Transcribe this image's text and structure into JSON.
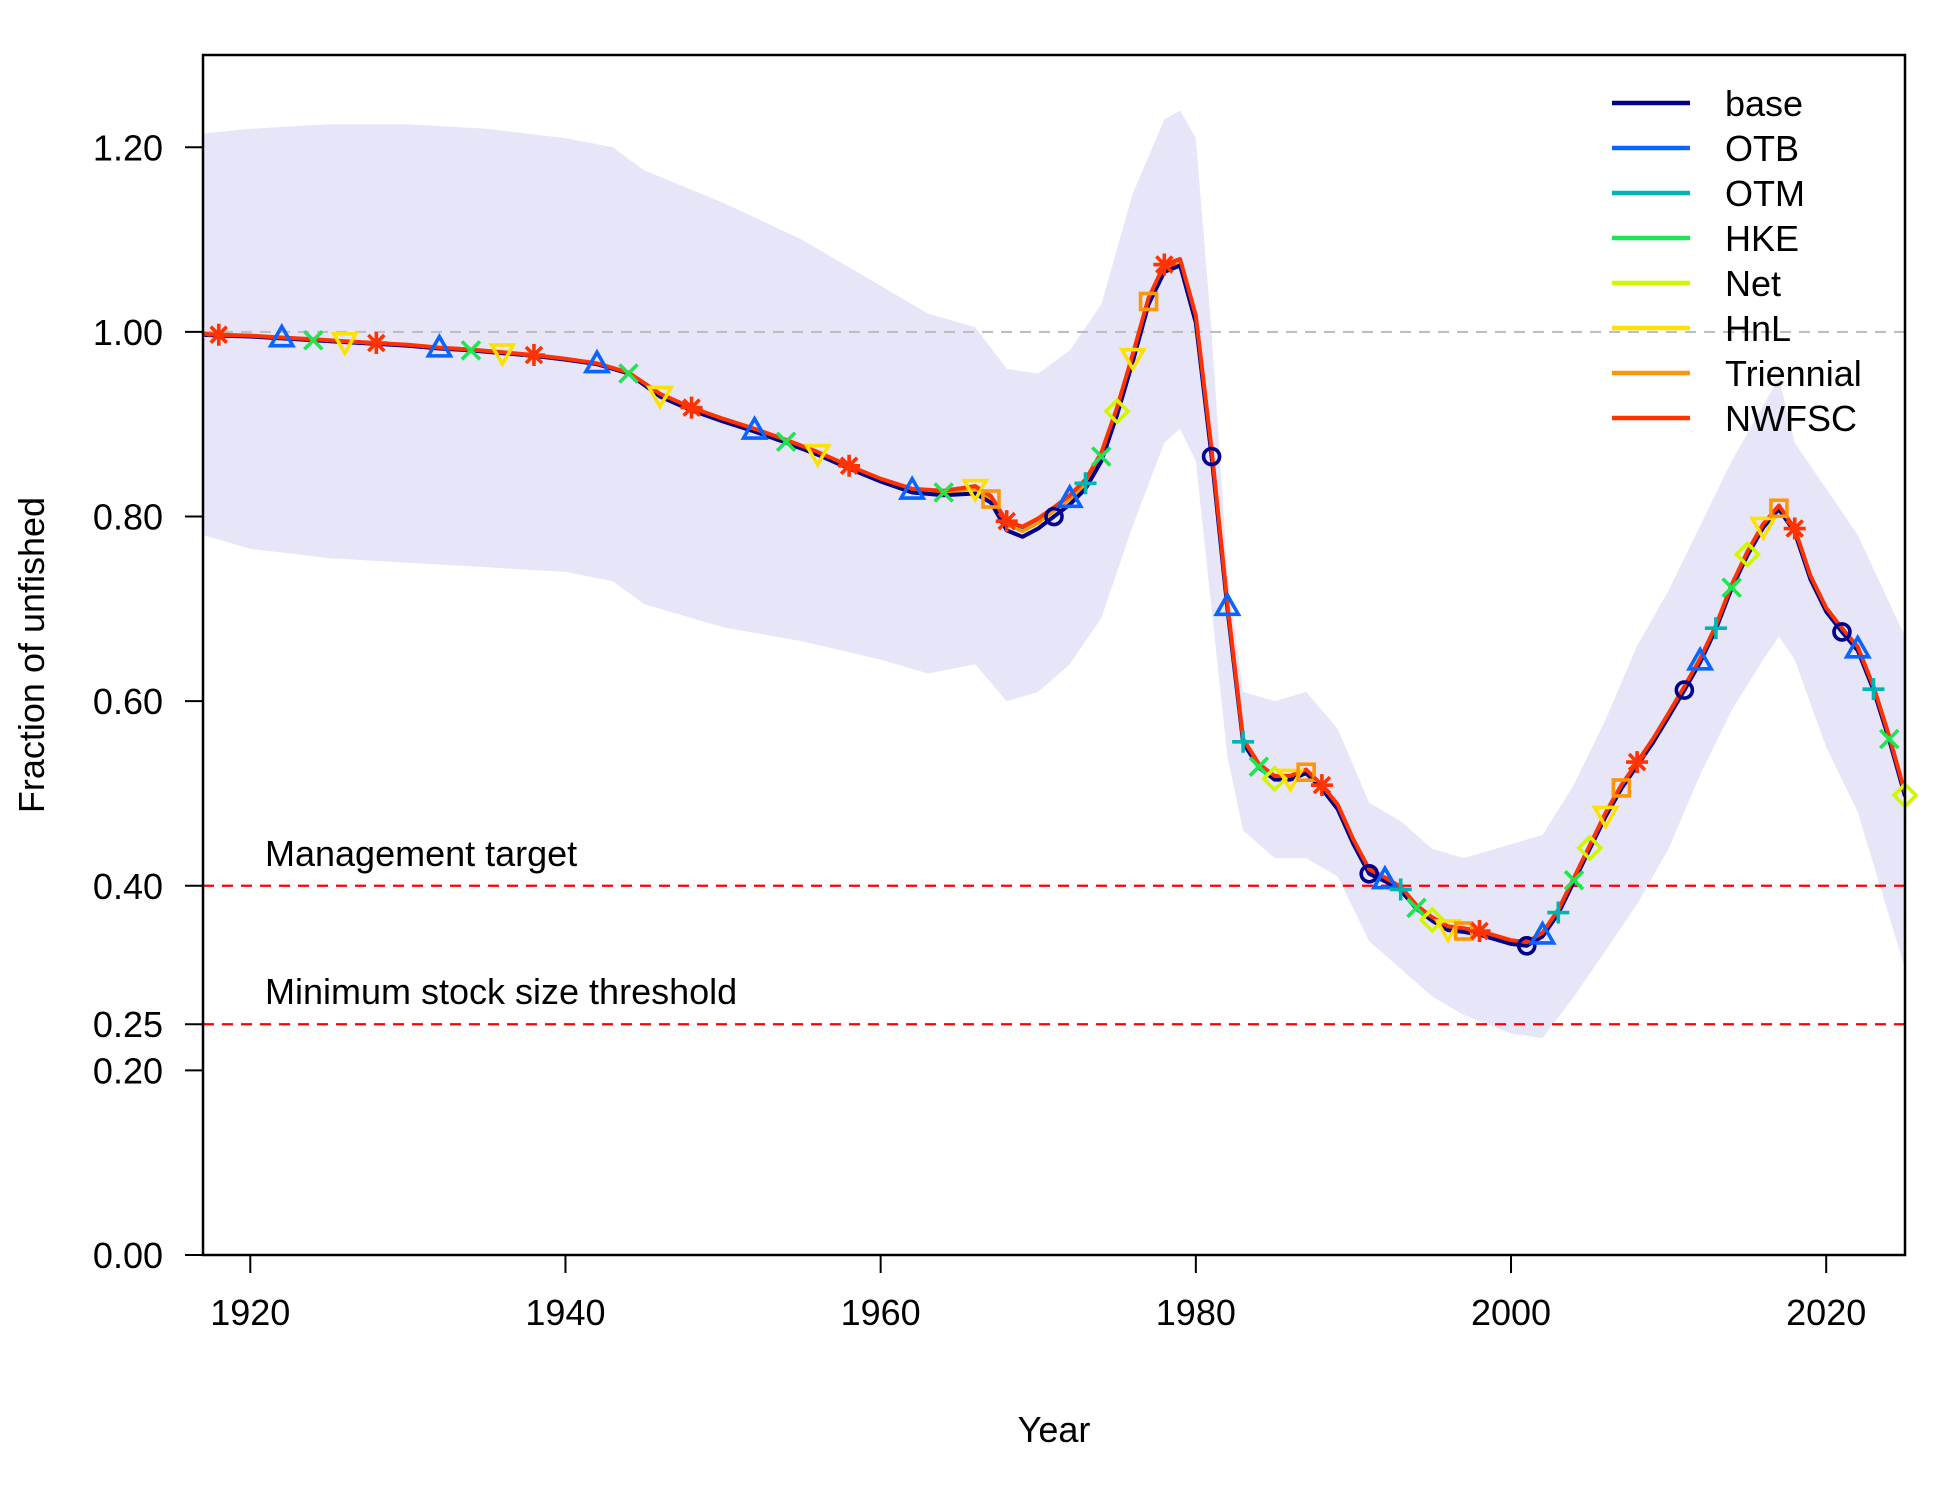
{
  "chart_data": {
    "type": "line",
    "xlabel": "Year",
    "ylabel": "Fraction of unfished",
    "xlim": [
      1917,
      2025
    ],
    "ylim": [
      0,
      1.3
    ],
    "x_ticks": [
      "1920",
      "1940",
      "1960",
      "1980",
      "2000",
      "2020"
    ],
    "y_ticks": [
      "0.00",
      "0.20",
      "0.25",
      "0.40",
      "0.60",
      "0.80",
      "1.00",
      "1.20"
    ],
    "reference_lines": [
      {
        "value": 1.0,
        "label": "",
        "color": "#BEBEBE",
        "style": "dashed"
      },
      {
        "value": 0.4,
        "label": "Management target",
        "color": "#FF0000",
        "style": "dashed"
      },
      {
        "value": 0.25,
        "label": "Minimum stock size threshold",
        "color": "#FF0000",
        "style": "dashed"
      }
    ],
    "interval_color": "#E6E6F8",
    "legend_position": "top-right",
    "interval": {
      "x": [
        1917,
        1920,
        1925,
        1930,
        1935,
        1940,
        1943,
        1945,
        1950,
        1955,
        1960,
        1963,
        1966,
        1968,
        1970,
        1972,
        1974,
        1976,
        1978,
        1979,
        1980,
        1981,
        1982,
        1983,
        1985,
        1987,
        1989,
        1991,
        1993,
        1995,
        1997,
        2000,
        2002,
        2004,
        2006,
        2008,
        2010,
        2012,
        2014,
        2016,
        2017,
        2018,
        2020,
        2022,
        2025
      ],
      "lower": [
        0.78,
        0.765,
        0.755,
        0.75,
        0.745,
        0.74,
        0.73,
        0.705,
        0.68,
        0.665,
        0.645,
        0.63,
        0.64,
        0.6,
        0.61,
        0.64,
        0.69,
        0.79,
        0.88,
        0.895,
        0.86,
        0.7,
        0.54,
        0.46,
        0.43,
        0.43,
        0.41,
        0.34,
        0.31,
        0.28,
        0.26,
        0.24,
        0.235,
        0.28,
        0.33,
        0.38,
        0.44,
        0.52,
        0.59,
        0.645,
        0.67,
        0.645,
        0.55,
        0.48,
        0.31
      ],
      "upper": [
        1.215,
        1.22,
        1.225,
        1.225,
        1.22,
        1.21,
        1.2,
        1.175,
        1.14,
        1.1,
        1.05,
        1.02,
        1.005,
        0.96,
        0.955,
        0.98,
        1.03,
        1.15,
        1.23,
        1.24,
        1.21,
        1.0,
        0.74,
        0.61,
        0.6,
        0.61,
        0.57,
        0.49,
        0.47,
        0.44,
        0.43,
        0.445,
        0.455,
        0.51,
        0.58,
        0.66,
        0.72,
        0.79,
        0.86,
        0.92,
        0.95,
        0.88,
        0.83,
        0.78,
        0.67
      ]
    },
    "x": [
      1917,
      1918,
      1920,
      1922,
      1924,
      1926,
      1928,
      1930,
      1932,
      1934,
      1936,
      1938,
      1940,
      1942,
      1944,
      1946,
      1948,
      1950,
      1952,
      1954,
      1956,
      1958,
      1960,
      1962,
      1964,
      1966,
      1967,
      1968,
      1969,
      1970,
      1971,
      1972,
      1973,
      1974,
      1975,
      1976,
      1977,
      1978,
      1979,
      1980,
      1981,
      1982,
      1983,
      1984,
      1985,
      1986,
      1987,
      1988,
      1989,
      1990,
      1991,
      1992,
      1993,
      1994,
      1995,
      1996,
      1997,
      1998,
      1999,
      2000,
      2001,
      2002,
      2003,
      2004,
      2005,
      2006,
      2007,
      2008,
      2009,
      2010,
      2011,
      2012,
      2013,
      2014,
      2015,
      2016,
      2017,
      2018,
      2019,
      2020,
      2021,
      2022,
      2023,
      2024,
      2025
    ],
    "series": [
      {
        "name": "base",
        "color": "#00008B",
        "marker": "circle",
        "values": [
          0.997,
          0.996,
          0.995,
          0.993,
          0.991,
          0.989,
          0.987,
          0.985,
          0.982,
          0.98,
          0.977,
          0.974,
          0.97,
          0.965,
          0.955,
          0.93,
          0.915,
          0.903,
          0.892,
          0.88,
          0.867,
          0.852,
          0.838,
          0.826,
          0.823,
          0.825,
          0.815,
          0.785,
          0.778,
          0.787,
          0.8,
          0.813,
          0.83,
          0.86,
          0.91,
          0.968,
          1.03,
          1.065,
          1.072,
          1.01,
          0.865,
          0.7,
          0.555,
          0.528,
          0.515,
          0.515,
          0.522,
          0.505,
          0.483,
          0.445,
          0.413,
          0.405,
          0.395,
          0.375,
          0.362,
          0.352,
          0.35,
          0.347,
          0.342,
          0.337,
          0.335,
          0.345,
          0.37,
          0.405,
          0.44,
          0.475,
          0.505,
          0.53,
          0.555,
          0.583,
          0.612,
          0.642,
          0.678,
          0.722,
          0.758,
          0.788,
          0.808,
          0.783,
          0.732,
          0.697,
          0.675,
          0.655,
          0.612,
          0.558,
          0.497
        ]
      },
      {
        "name": "OTB",
        "color": "#0A64FF",
        "marker": "triangle",
        "values": [
          0.997,
          0.996,
          0.995,
          0.994,
          0.992,
          0.99,
          0.988,
          0.986,
          0.983,
          0.981,
          0.978,
          0.975,
          0.971,
          0.966,
          0.956,
          0.932,
          0.917,
          0.905,
          0.894,
          0.882,
          0.869,
          0.854,
          0.84,
          0.829,
          0.827,
          0.831,
          0.82,
          0.792,
          0.785,
          0.794,
          0.807,
          0.82,
          0.837,
          0.866,
          0.915,
          0.973,
          1.034,
          1.07,
          1.076,
          1.015,
          0.87,
          0.703,
          0.557,
          0.53,
          0.517,
          0.517,
          0.524,
          0.507,
          0.486,
          0.448,
          0.416,
          0.407,
          0.397,
          0.377,
          0.364,
          0.354,
          0.352,
          0.349,
          0.344,
          0.339,
          0.337,
          0.347,
          0.372,
          0.407,
          0.442,
          0.477,
          0.507,
          0.532,
          0.557,
          0.585,
          0.614,
          0.644,
          0.68,
          0.724,
          0.76,
          0.79,
          0.81,
          0.785,
          0.734,
          0.699,
          0.677,
          0.657,
          0.614,
          0.56,
          0.499
        ]
      },
      {
        "name": "OTM",
        "color": "#00B4B4",
        "marker": "plus",
        "values": [
          0.997,
          0.996,
          0.995,
          0.993,
          0.991,
          0.989,
          0.987,
          0.985,
          0.982,
          0.98,
          0.977,
          0.974,
          0.97,
          0.965,
          0.955,
          0.931,
          0.916,
          0.904,
          0.893,
          0.881,
          0.868,
          0.853,
          0.839,
          0.828,
          0.826,
          0.83,
          0.819,
          0.791,
          0.784,
          0.793,
          0.806,
          0.819,
          0.836,
          0.865,
          0.914,
          0.972,
          1.033,
          1.069,
          1.075,
          1.014,
          0.869,
          0.702,
          0.556,
          0.529,
          0.516,
          0.516,
          0.523,
          0.506,
          0.485,
          0.447,
          0.415,
          0.406,
          0.396,
          0.376,
          0.363,
          0.353,
          0.351,
          0.348,
          0.343,
          0.338,
          0.336,
          0.346,
          0.371,
          0.406,
          0.441,
          0.476,
          0.506,
          0.531,
          0.556,
          0.584,
          0.613,
          0.643,
          0.679,
          0.723,
          0.759,
          0.789,
          0.809,
          0.784,
          0.733,
          0.698,
          0.676,
          0.656,
          0.613,
          0.559,
          0.498
        ]
      },
      {
        "name": "HKE",
        "color": "#1EE650",
        "marker": "x",
        "values": [
          0.997,
          0.996,
          0.995,
          0.993,
          0.991,
          0.989,
          0.987,
          0.985,
          0.982,
          0.98,
          0.977,
          0.974,
          0.97,
          0.965,
          0.955,
          0.931,
          0.916,
          0.904,
          0.893,
          0.881,
          0.868,
          0.853,
          0.839,
          0.828,
          0.826,
          0.83,
          0.819,
          0.791,
          0.784,
          0.793,
          0.806,
          0.819,
          0.836,
          0.865,
          0.914,
          0.972,
          1.033,
          1.069,
          1.075,
          1.014,
          0.869,
          0.702,
          0.556,
          0.529,
          0.516,
          0.516,
          0.523,
          0.506,
          0.485,
          0.447,
          0.415,
          0.406,
          0.396,
          0.376,
          0.363,
          0.353,
          0.351,
          0.348,
          0.343,
          0.338,
          0.336,
          0.346,
          0.371,
          0.406,
          0.441,
          0.476,
          0.506,
          0.531,
          0.556,
          0.584,
          0.613,
          0.643,
          0.679,
          0.723,
          0.759,
          0.789,
          0.809,
          0.784,
          0.733,
          0.698,
          0.676,
          0.656,
          0.613,
          0.559,
          0.498
        ]
      },
      {
        "name": "Net",
        "color": "#D2F500",
        "marker": "diamond",
        "values": [
          0.997,
          0.996,
          0.995,
          0.993,
          0.991,
          0.989,
          0.987,
          0.985,
          0.982,
          0.98,
          0.977,
          0.974,
          0.97,
          0.965,
          0.955,
          0.931,
          0.916,
          0.904,
          0.893,
          0.881,
          0.868,
          0.853,
          0.839,
          0.828,
          0.826,
          0.83,
          0.819,
          0.791,
          0.784,
          0.793,
          0.806,
          0.819,
          0.836,
          0.865,
          0.914,
          0.972,
          1.033,
          1.069,
          1.075,
          1.014,
          0.869,
          0.702,
          0.556,
          0.529,
          0.516,
          0.516,
          0.523,
          0.506,
          0.485,
          0.447,
          0.415,
          0.406,
          0.396,
          0.376,
          0.363,
          0.353,
          0.351,
          0.348,
          0.343,
          0.338,
          0.336,
          0.346,
          0.371,
          0.406,
          0.441,
          0.476,
          0.506,
          0.531,
          0.556,
          0.584,
          0.613,
          0.643,
          0.679,
          0.723,
          0.759,
          0.789,
          0.809,
          0.784,
          0.733,
          0.698,
          0.676,
          0.656,
          0.613,
          0.559,
          0.498
        ]
      },
      {
        "name": "HnL",
        "color": "#FFE100",
        "marker": "triangle-down",
        "values": [
          0.997,
          0.996,
          0.995,
          0.993,
          0.991,
          0.989,
          0.987,
          0.985,
          0.982,
          0.98,
          0.977,
          0.974,
          0.97,
          0.965,
          0.955,
          0.931,
          0.916,
          0.904,
          0.893,
          0.881,
          0.868,
          0.853,
          0.839,
          0.828,
          0.826,
          0.83,
          0.819,
          0.791,
          0.784,
          0.793,
          0.806,
          0.819,
          0.836,
          0.865,
          0.914,
          0.972,
          1.033,
          1.069,
          1.075,
          1.014,
          0.869,
          0.702,
          0.556,
          0.529,
          0.516,
          0.516,
          0.523,
          0.506,
          0.485,
          0.447,
          0.415,
          0.406,
          0.396,
          0.376,
          0.363,
          0.353,
          0.351,
          0.348,
          0.343,
          0.338,
          0.336,
          0.346,
          0.371,
          0.406,
          0.441,
          0.476,
          0.506,
          0.531,
          0.556,
          0.584,
          0.613,
          0.643,
          0.679,
          0.723,
          0.759,
          0.789,
          0.809,
          0.784,
          0.733,
          0.698,
          0.676,
          0.656,
          0.613,
          0.559,
          0.498
        ]
      },
      {
        "name": "Triennial",
        "color": "#FF960A",
        "marker": "square",
        "values": [
          0.997,
          0.996,
          0.995,
          0.993,
          0.991,
          0.989,
          0.987,
          0.985,
          0.982,
          0.98,
          0.977,
          0.974,
          0.97,
          0.965,
          0.955,
          0.931,
          0.916,
          0.904,
          0.893,
          0.881,
          0.868,
          0.853,
          0.839,
          0.828,
          0.826,
          0.83,
          0.819,
          0.791,
          0.784,
          0.793,
          0.806,
          0.819,
          0.836,
          0.865,
          0.914,
          0.972,
          1.033,
          1.069,
          1.075,
          1.014,
          0.869,
          0.702,
          0.556,
          0.529,
          0.516,
          0.516,
          0.523,
          0.506,
          0.485,
          0.447,
          0.415,
          0.406,
          0.396,
          0.376,
          0.363,
          0.353,
          0.351,
          0.348,
          0.343,
          0.338,
          0.336,
          0.346,
          0.371,
          0.406,
          0.441,
          0.476,
          0.506,
          0.531,
          0.556,
          0.584,
          0.613,
          0.643,
          0.679,
          0.723,
          0.759,
          0.789,
          0.809,
          0.784,
          0.733,
          0.698,
          0.676,
          0.656,
          0.613,
          0.559,
          0.498
        ]
      },
      {
        "name": "NWFSC",
        "color": "#FF3200",
        "marker": "asterisk",
        "values": [
          0.998,
          0.997,
          0.996,
          0.994,
          0.992,
          0.99,
          0.988,
          0.986,
          0.983,
          0.981,
          0.978,
          0.975,
          0.971,
          0.966,
          0.956,
          0.933,
          0.918,
          0.906,
          0.895,
          0.883,
          0.87,
          0.855,
          0.841,
          0.83,
          0.828,
          0.833,
          0.822,
          0.795,
          0.789,
          0.798,
          0.81,
          0.823,
          0.84,
          0.869,
          0.918,
          0.976,
          1.037,
          1.073,
          1.079,
          1.018,
          0.873,
          0.706,
          0.559,
          0.532,
          0.519,
          0.519,
          0.526,
          0.509,
          0.488,
          0.45,
          0.418,
          0.409,
          0.399,
          0.379,
          0.366,
          0.356,
          0.354,
          0.351,
          0.346,
          0.341,
          0.339,
          0.349,
          0.374,
          0.409,
          0.444,
          0.479,
          0.509,
          0.534,
          0.559,
          0.587,
          0.616,
          0.646,
          0.682,
          0.726,
          0.762,
          0.792,
          0.812,
          0.787,
          0.736,
          0.701,
          0.679,
          0.659,
          0.616,
          0.562,
          0.501
        ]
      }
    ]
  }
}
